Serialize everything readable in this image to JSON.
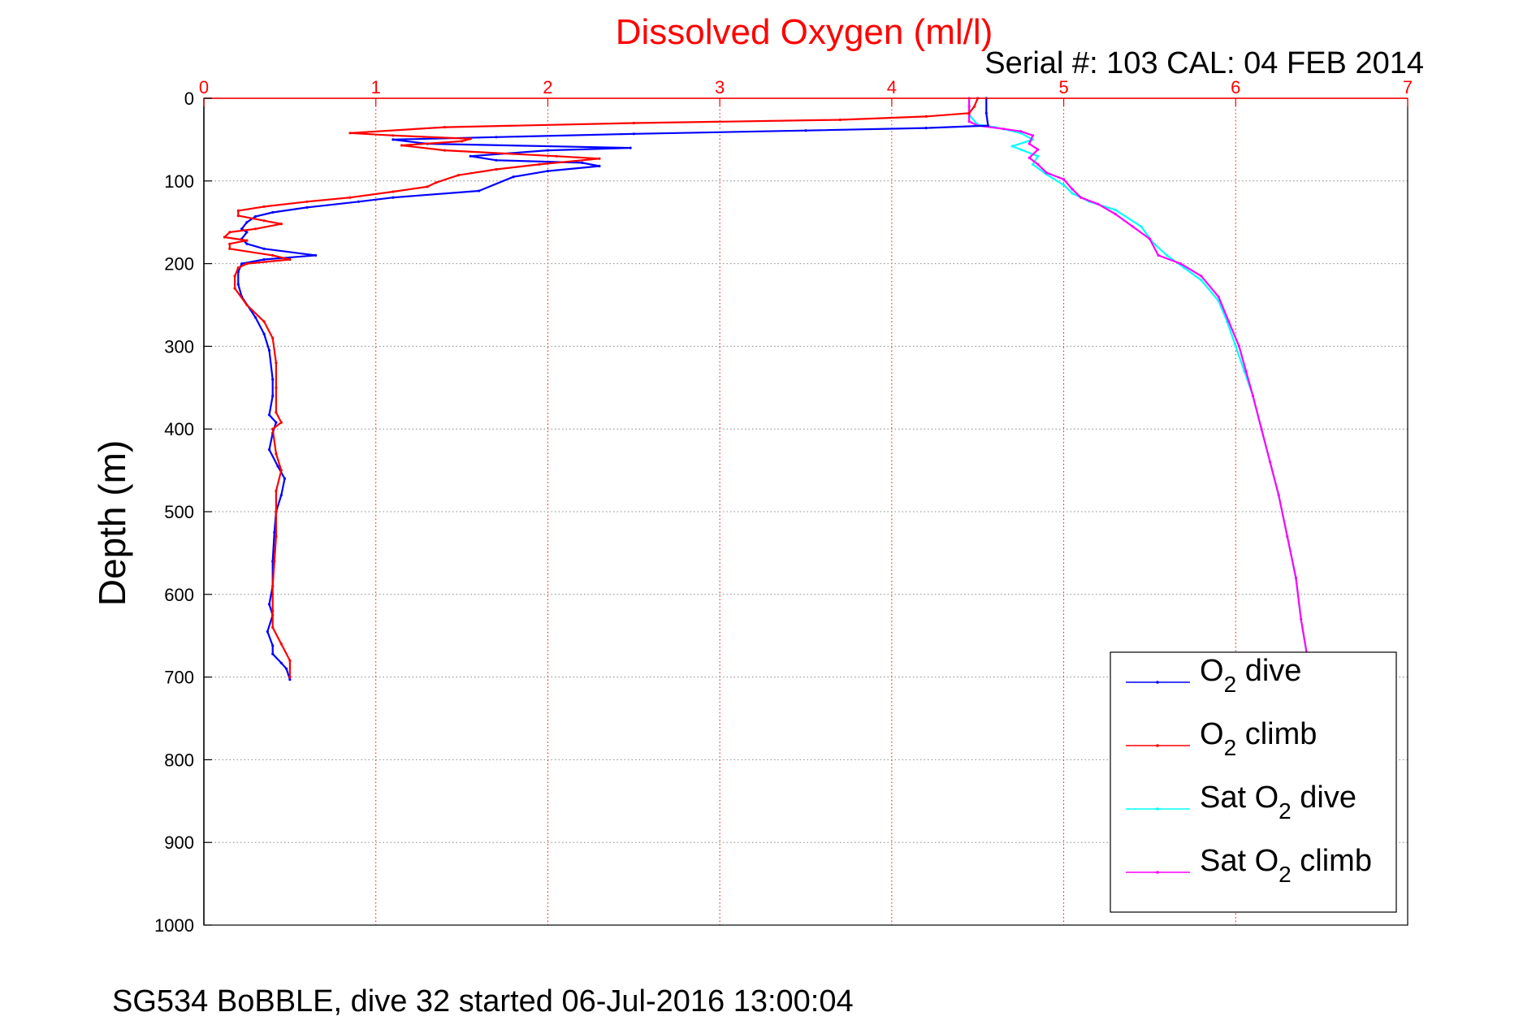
{
  "chart_data": {
    "type": "line",
    "title": "Dissolved Oxygen (ml/l)",
    "subtitle": "Serial #: 103  CAL: 04 FEB 2014",
    "ylabel": "Depth (m)",
    "footer": "SG534 BoBBLE, dive 32 started 06-Jul-2016 13:00:04",
    "xlim": [
      0,
      7
    ],
    "ylim": [
      0,
      1000
    ],
    "y_reversed": true,
    "x_axis_position": "top",
    "grid": true,
    "legend_position": "bottom-right",
    "x_ticks": [
      "0",
      "1",
      "2",
      "3",
      "4",
      "5",
      "6",
      "7"
    ],
    "y_ticks": [
      "0",
      "100",
      "200",
      "300",
      "400",
      "500",
      "600",
      "700",
      "800",
      "900",
      "1000"
    ],
    "colors": {
      "title": "#ff0000",
      "x_axis": "#ff0000",
      "y_axis": "#000000",
      "grid": "#888888"
    },
    "series": [
      {
        "name": "O2 dive",
        "legend_text": "O",
        "legend_sub": "2",
        "legend_suffix": " dive",
        "color": "#0000ff",
        "points": [
          [
            4.55,
            0
          ],
          [
            4.55,
            18
          ],
          [
            4.56,
            33
          ],
          [
            4.2,
            36
          ],
          [
            3.5,
            39
          ],
          [
            2.5,
            43
          ],
          [
            1.7,
            47
          ],
          [
            1.1,
            50
          ],
          [
            1.3,
            55
          ],
          [
            2.48,
            60
          ],
          [
            2.0,
            63
          ],
          [
            1.55,
            70
          ],
          [
            1.7,
            75
          ],
          [
            2.2,
            78
          ],
          [
            2.3,
            82
          ],
          [
            2.0,
            88
          ],
          [
            1.8,
            95
          ],
          [
            1.6,
            112
          ],
          [
            1.1,
            120
          ],
          [
            0.9,
            125
          ],
          [
            0.6,
            132
          ],
          [
            0.4,
            138
          ],
          [
            0.3,
            143
          ],
          [
            0.25,
            150
          ],
          [
            0.22,
            158
          ],
          [
            0.25,
            162
          ],
          [
            0.22,
            170
          ],
          [
            0.25,
            176
          ],
          [
            0.35,
            182
          ],
          [
            0.65,
            190
          ],
          [
            0.35,
            195
          ],
          [
            0.22,
            200
          ],
          [
            0.2,
            210
          ],
          [
            0.2,
            225
          ],
          [
            0.22,
            240
          ],
          [
            0.3,
            265
          ],
          [
            0.35,
            285
          ],
          [
            0.38,
            305
          ],
          [
            0.4,
            340
          ],
          [
            0.4,
            360
          ],
          [
            0.38,
            383
          ],
          [
            0.42,
            392
          ],
          [
            0.4,
            405
          ],
          [
            0.38,
            425
          ],
          [
            0.43,
            445
          ],
          [
            0.47,
            460
          ],
          [
            0.45,
            480
          ],
          [
            0.42,
            500
          ],
          [
            0.41,
            525
          ],
          [
            0.4,
            560
          ],
          [
            0.4,
            590
          ],
          [
            0.38,
            612
          ],
          [
            0.4,
            625
          ],
          [
            0.37,
            645
          ],
          [
            0.4,
            662
          ],
          [
            0.4,
            672
          ],
          [
            0.45,
            683
          ],
          [
            0.48,
            690
          ],
          [
            0.5,
            703
          ]
        ]
      },
      {
        "name": "O2 climb",
        "legend_text": "O",
        "legend_sub": "2",
        "legend_suffix": " climb",
        "color": "#ff0000",
        "points": [
          [
            4.5,
            0
          ],
          [
            4.48,
            10
          ],
          [
            4.45,
            18
          ],
          [
            4.2,
            22
          ],
          [
            3.7,
            26
          ],
          [
            2.5,
            30
          ],
          [
            1.4,
            35
          ],
          [
            0.85,
            42
          ],
          [
            1.1,
            45
          ],
          [
            1.55,
            49
          ],
          [
            1.5,
            52
          ],
          [
            1.15,
            57
          ],
          [
            1.4,
            63
          ],
          [
            2.05,
            70
          ],
          [
            2.3,
            73
          ],
          [
            1.95,
            80
          ],
          [
            1.7,
            86
          ],
          [
            1.48,
            93
          ],
          [
            1.35,
            102
          ],
          [
            1.3,
            107
          ],
          [
            1.1,
            113
          ],
          [
            0.85,
            120
          ],
          [
            0.6,
            125
          ],
          [
            0.35,
            131
          ],
          [
            0.2,
            136
          ],
          [
            0.2,
            142
          ],
          [
            0.35,
            148
          ],
          [
            0.45,
            152
          ],
          [
            0.3,
            158
          ],
          [
            0.15,
            162
          ],
          [
            0.12,
            168
          ],
          [
            0.25,
            172
          ],
          [
            0.15,
            176
          ],
          [
            0.15,
            182
          ],
          [
            0.4,
            190
          ],
          [
            0.5,
            195
          ],
          [
            0.25,
            200
          ],
          [
            0.2,
            205
          ],
          [
            0.18,
            215
          ],
          [
            0.18,
            230
          ],
          [
            0.25,
            250
          ],
          [
            0.35,
            270
          ],
          [
            0.4,
            290
          ],
          [
            0.42,
            320
          ],
          [
            0.42,
            350
          ],
          [
            0.42,
            380
          ],
          [
            0.45,
            392
          ],
          [
            0.4,
            400
          ],
          [
            0.42,
            430
          ],
          [
            0.45,
            450
          ],
          [
            0.42,
            475
          ],
          [
            0.42,
            500
          ],
          [
            0.42,
            530
          ],
          [
            0.41,
            560
          ],
          [
            0.4,
            590
          ],
          [
            0.4,
            620
          ],
          [
            0.4,
            640
          ],
          [
            0.45,
            660
          ],
          [
            0.5,
            680
          ],
          [
            0.5,
            700
          ]
        ]
      },
      {
        "name": "Sat O2 dive",
        "legend_text": "Sat O",
        "legend_sub": "2",
        "legend_suffix": " dive",
        "color": "#00ffff",
        "points": [
          [
            4.45,
            0
          ],
          [
            4.45,
            10
          ],
          [
            4.45,
            20
          ],
          [
            4.5,
            32
          ],
          [
            4.6,
            35
          ],
          [
            4.75,
            42
          ],
          [
            4.82,
            50
          ],
          [
            4.7,
            58
          ],
          [
            4.75,
            62
          ],
          [
            4.85,
            70
          ],
          [
            4.82,
            80
          ],
          [
            4.9,
            92
          ],
          [
            5.0,
            105
          ],
          [
            5.05,
            115
          ],
          [
            5.15,
            125
          ],
          [
            5.3,
            135
          ],
          [
            5.45,
            155
          ],
          [
            5.52,
            175
          ],
          [
            5.6,
            190
          ],
          [
            5.7,
            205
          ],
          [
            5.8,
            220
          ],
          [
            5.9,
            245
          ],
          [
            5.95,
            270
          ],
          [
            6.0,
            300
          ],
          [
            6.05,
            330
          ],
          [
            6.1,
            360
          ],
          [
            6.15,
            400
          ],
          [
            6.2,
            440
          ],
          [
            6.25,
            480
          ],
          [
            6.3,
            530
          ],
          [
            6.35,
            580
          ],
          [
            6.38,
            630
          ],
          [
            6.42,
            680
          ]
        ]
      },
      {
        "name": "Sat O2 climb",
        "legend_text": "Sat O",
        "legend_sub": "2",
        "legend_suffix": " climb",
        "color": "#ff00ff",
        "points": [
          [
            4.45,
            0
          ],
          [
            4.45,
            10
          ],
          [
            4.45,
            20
          ],
          [
            4.45,
            28
          ],
          [
            4.5,
            33
          ],
          [
            4.65,
            37
          ],
          [
            4.75,
            40
          ],
          [
            4.82,
            45
          ],
          [
            4.8,
            55
          ],
          [
            4.85,
            62
          ],
          [
            4.8,
            72
          ],
          [
            4.85,
            80
          ],
          [
            4.9,
            90
          ],
          [
            5.0,
            98
          ],
          [
            5.05,
            110
          ],
          [
            5.1,
            120
          ],
          [
            5.2,
            128
          ],
          [
            5.3,
            140
          ],
          [
            5.4,
            155
          ],
          [
            5.5,
            170
          ],
          [
            5.55,
            190
          ],
          [
            5.68,
            200
          ],
          [
            5.8,
            215
          ],
          [
            5.9,
            240
          ],
          [
            5.96,
            270
          ],
          [
            6.02,
            300
          ],
          [
            6.06,
            330
          ],
          [
            6.1,
            360
          ],
          [
            6.15,
            400
          ],
          [
            6.2,
            440
          ],
          [
            6.25,
            480
          ],
          [
            6.3,
            530
          ],
          [
            6.35,
            580
          ],
          [
            6.38,
            630
          ],
          [
            6.42,
            680
          ]
        ]
      }
    ]
  }
}
